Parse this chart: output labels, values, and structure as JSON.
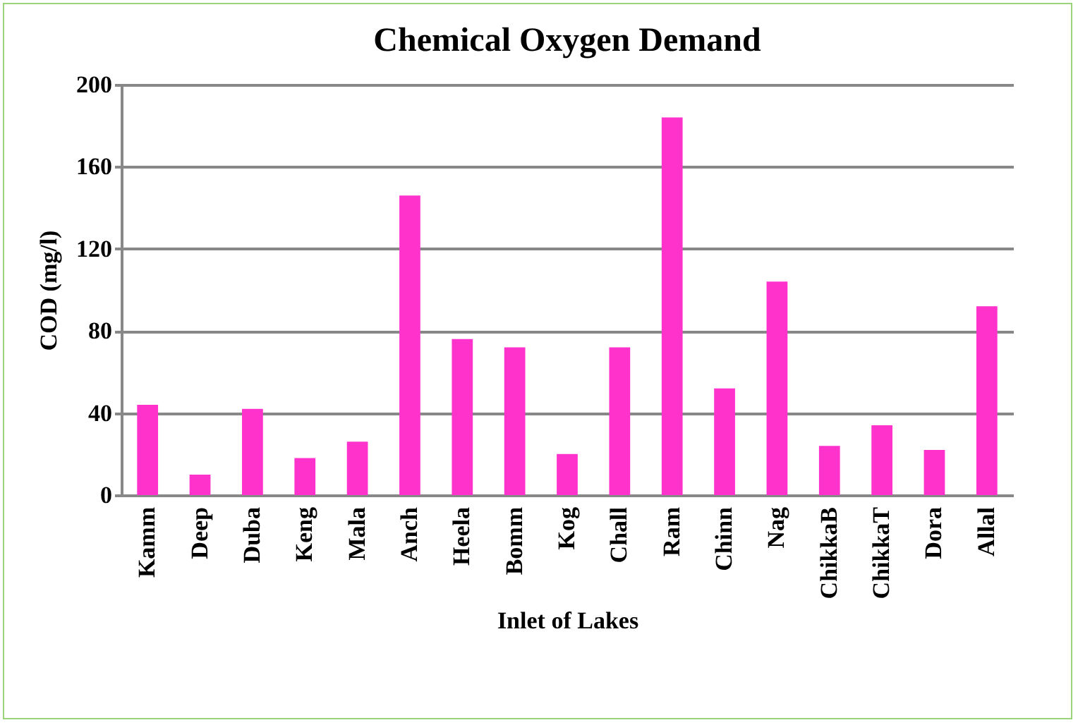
{
  "chart_data": {
    "type": "bar",
    "title": "Chemical Oxygen Demand",
    "xlabel": "Inlet of Lakes",
    "ylabel": "COD (mg/l)",
    "categories": [
      "Kamm",
      "Deep",
      "Duba",
      "Keng",
      "Mala",
      "Anch",
      "Heela",
      "Bomm",
      "Kog",
      "Chall",
      "Ram",
      "Chinn",
      "Nag",
      "ChikkaB",
      "ChikkaT",
      "Dora",
      "Allal"
    ],
    "values": [
      44,
      10,
      42,
      18,
      26,
      146,
      76,
      72,
      20,
      72,
      184,
      52,
      104,
      24,
      34,
      22,
      92
    ],
    "color": "#ff33cc",
    "ylim": [
      0,
      200
    ],
    "yticks": [
      0,
      40,
      80,
      120,
      160,
      200
    ],
    "grid": "y"
  }
}
